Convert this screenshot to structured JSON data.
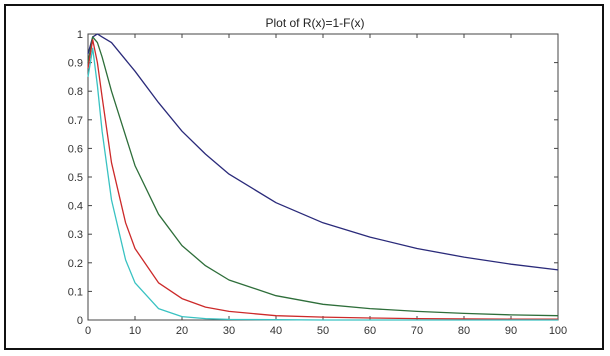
{
  "chart_data": {
    "type": "line",
    "title": "Plot of R(x)=1-F(x)",
    "xlabel": "",
    "ylabel": "",
    "xlim": [
      0,
      100
    ],
    "ylim": [
      0,
      1
    ],
    "x_ticks": [
      0,
      10,
      20,
      30,
      40,
      50,
      60,
      70,
      80,
      90,
      100
    ],
    "y_ticks": [
      0,
      0.1,
      0.2,
      0.3,
      0.4,
      0.5,
      0.6,
      0.7,
      0.8,
      0.9,
      1
    ],
    "x_tick_labels": [
      "0",
      "10",
      "20",
      "30",
      "40",
      "50",
      "60",
      "70",
      "80",
      "90",
      "100"
    ],
    "y_tick_labels": [
      "0",
      "0.1",
      "0.2",
      "0.3",
      "0.4",
      "0.5",
      "0.6",
      "0.7",
      "0.8",
      "0.9",
      "1"
    ],
    "grid": false,
    "legend": "none",
    "series": [
      {
        "color": "#2a2a7a",
        "x": [
          0,
          1,
          2,
          3,
          5,
          10,
          15,
          20,
          25,
          30,
          40,
          50,
          60,
          70,
          80,
          90,
          100
        ],
        "y": [
          0.93,
          0.99,
          1.0,
          0.99,
          0.97,
          0.87,
          0.76,
          0.66,
          0.58,
          0.51,
          0.41,
          0.34,
          0.29,
          0.25,
          0.22,
          0.195,
          0.175
        ]
      },
      {
        "color": "#2e6e3a",
        "x": [
          0,
          1,
          2,
          3,
          5,
          10,
          15,
          20,
          25,
          30,
          40,
          50,
          60,
          70,
          80,
          90,
          100
        ],
        "y": [
          0.9,
          0.99,
          0.97,
          0.92,
          0.8,
          0.54,
          0.37,
          0.26,
          0.19,
          0.14,
          0.085,
          0.055,
          0.04,
          0.03,
          0.023,
          0.018,
          0.015
        ]
      },
      {
        "color": "#cc2a2a",
        "x": [
          0,
          1,
          2,
          3,
          5,
          8,
          10,
          15,
          20,
          25,
          30,
          40,
          50,
          60,
          70,
          80,
          90,
          100
        ],
        "y": [
          0.88,
          0.98,
          0.9,
          0.78,
          0.55,
          0.34,
          0.25,
          0.13,
          0.075,
          0.045,
          0.03,
          0.015,
          0.01,
          0.007,
          0.005,
          0.004,
          0.003,
          0.003
        ]
      },
      {
        "color": "#39c2c2",
        "x": [
          0,
          1,
          2,
          3,
          5,
          8,
          10,
          15,
          20,
          25,
          30,
          40,
          50,
          60,
          70,
          80,
          90,
          100
        ],
        "y": [
          0.85,
          0.95,
          0.82,
          0.66,
          0.42,
          0.21,
          0.13,
          0.04,
          0.012,
          0.005,
          0.002,
          0.001,
          0.0,
          0.0,
          0.0,
          0.0,
          0.0,
          0.0
        ]
      }
    ]
  }
}
